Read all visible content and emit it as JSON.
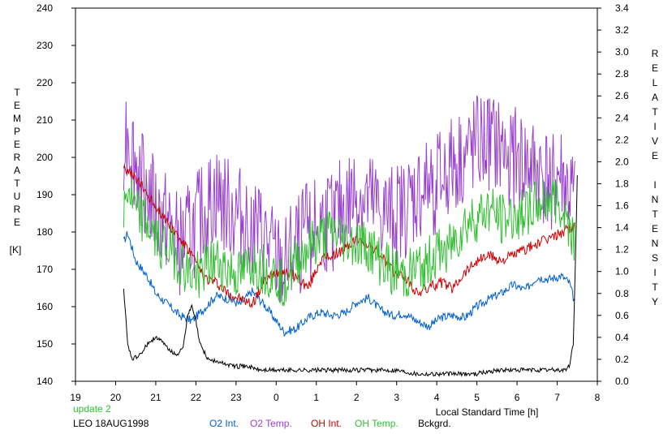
{
  "chart_data": {
    "type": "line",
    "xlabel": "Local Standard Time [h]",
    "ylabel_left": "TEMPERATURE",
    "ylabel_left_unit": "[K]",
    "ylabel_right": "RELATIVE INTENSITY",
    "station": "LEO 18AUG1998",
    "update_label": "update 2",
    "x_ticks": [
      "19",
      "20",
      "21",
      "22",
      "23",
      "0",
      "1",
      "2",
      "3",
      "4",
      "5",
      "6",
      "7",
      "8"
    ],
    "xlim": [
      19,
      32
    ],
    "ylim_left": [
      140,
      240
    ],
    "y_ticks_left": [
      140,
      150,
      160,
      170,
      180,
      190,
      200,
      210,
      220,
      230,
      240
    ],
    "ylim_right": [
      0.0,
      3.4
    ],
    "y_ticks_right": [
      "0.0",
      "0.2",
      "0.4",
      "0.6",
      "0.8",
      "1.0",
      "1.2",
      "1.4",
      "1.6",
      "1.8",
      "2.0",
      "2.2",
      "2.4",
      "2.6",
      "2.8",
      "3.0",
      "3.2",
      "3.4"
    ],
    "grid": false,
    "legend_placement": "bottom",
    "series": [
      {
        "name": "O2 Int.",
        "axis": "right",
        "color": "#0060d0",
        "x": [
          20.2,
          20.3,
          20.5,
          20.8,
          21.0,
          21.3,
          21.6,
          21.9,
          22.2,
          22.5,
          22.8,
          23.1,
          23.4,
          23.7,
          24.0,
          24.2,
          24.5,
          24.8,
          25.1,
          25.4,
          25.7,
          26.0,
          26.3,
          26.6,
          26.9,
          27.2,
          27.5,
          27.8,
          28.1,
          28.4,
          28.7,
          29.0,
          29.3,
          29.6,
          29.9,
          30.2,
          30.5,
          30.8,
          31.1,
          31.3,
          31.45
        ],
        "y": [
          1.27,
          1.35,
          1.1,
          0.95,
          0.8,
          0.7,
          0.6,
          0.55,
          0.66,
          0.78,
          0.75,
          0.7,
          0.82,
          0.7,
          0.55,
          0.45,
          0.48,
          0.58,
          0.63,
          0.6,
          0.62,
          0.72,
          0.76,
          0.65,
          0.6,
          0.62,
          0.55,
          0.5,
          0.58,
          0.6,
          0.58,
          0.68,
          0.75,
          0.8,
          0.88,
          0.83,
          0.95,
          0.93,
          0.96,
          0.9,
          0.7
        ]
      },
      {
        "name": "O2 Temp.",
        "axis": "left",
        "color": "#9a40d0",
        "x": [
          20.2,
          20.3,
          20.5,
          20.8,
          21.0,
          21.3,
          21.6,
          21.9,
          22.2,
          22.5,
          22.8,
          23.1,
          23.4,
          23.7,
          24.0,
          24.2,
          24.5,
          24.8,
          25.1,
          25.4,
          25.7,
          26.0,
          26.3,
          26.6,
          26.9,
          27.2,
          27.5,
          27.8,
          28.1,
          28.4,
          28.7,
          29.0,
          29.3,
          29.6,
          29.9,
          30.2,
          30.5,
          30.8,
          31.1,
          31.3,
          31.45
        ],
        "y": [
          205,
          208,
          198,
          192,
          185,
          182,
          176,
          180,
          185,
          190,
          186,
          184,
          182,
          178,
          172,
          170,
          176,
          180,
          182,
          183,
          187,
          190,
          188,
          185,
          184,
          186,
          190,
          192,
          194,
          198,
          200,
          203,
          204,
          202,
          200,
          198,
          196,
          194,
          195,
          190,
          188
        ]
      },
      {
        "name": "OH Int.",
        "axis": "right",
        "color": "#d00000",
        "x": [
          20.2,
          20.3,
          20.5,
          20.8,
          21.0,
          21.3,
          21.6,
          21.9,
          22.2,
          22.5,
          22.8,
          23.1,
          23.4,
          23.7,
          24.0,
          24.2,
          24.5,
          24.8,
          25.1,
          25.4,
          25.7,
          26.0,
          26.3,
          26.6,
          26.9,
          27.2,
          27.5,
          27.8,
          28.1,
          28.4,
          28.7,
          29.0,
          29.3,
          29.6,
          29.9,
          30.2,
          30.5,
          30.8,
          31.1,
          31.3,
          31.45
        ],
        "y": [
          1.98,
          1.9,
          1.85,
          1.7,
          1.6,
          1.45,
          1.3,
          1.15,
          0.95,
          0.9,
          0.8,
          0.75,
          0.7,
          0.9,
          1.0,
          1.0,
          0.95,
          0.85,
          1.1,
          1.15,
          1.2,
          1.3,
          1.25,
          1.15,
          1.0,
          0.95,
          0.8,
          0.85,
          0.9,
          0.85,
          1.0,
          1.1,
          1.15,
          1.1,
          1.15,
          1.2,
          1.25,
          1.3,
          1.35,
          1.4,
          1.4
        ]
      },
      {
        "name": "OH Temp.",
        "axis": "left",
        "color": "#30c030",
        "x": [
          20.2,
          20.3,
          20.5,
          20.8,
          21.0,
          21.3,
          21.6,
          21.9,
          22.2,
          22.5,
          22.8,
          23.1,
          23.4,
          23.7,
          24.0,
          24.2,
          24.5,
          24.8,
          25.1,
          25.4,
          25.7,
          26.0,
          26.3,
          26.6,
          26.9,
          27.2,
          27.5,
          27.8,
          28.1,
          28.4,
          28.7,
          29.0,
          29.3,
          29.6,
          29.9,
          30.2,
          30.5,
          30.8,
          31.1,
          31.3,
          31.45
        ],
        "y": [
          185,
          192,
          185,
          182,
          178,
          176,
          172,
          168,
          170,
          172,
          170,
          168,
          172,
          170,
          168,
          167,
          172,
          176,
          178,
          180,
          178,
          177,
          176,
          172,
          170,
          168,
          170,
          172,
          175,
          177,
          182,
          184,
          186,
          183,
          184,
          186,
          187,
          189,
          188,
          182,
          178
        ]
      },
      {
        "name": "Bckgrd.",
        "axis": "left",
        "color": "#000000",
        "x": [
          20.2,
          20.3,
          20.4,
          20.6,
          20.8,
          21.0,
          21.2,
          21.4,
          21.5,
          21.6,
          21.7,
          21.8,
          21.9,
          22.0,
          22.1,
          22.3,
          22.6,
          23.0,
          23.3,
          23.6,
          24.0,
          24.5,
          25.0,
          25.5,
          26.0,
          26.5,
          27.0,
          27.5,
          28.0,
          28.5,
          29.0,
          29.5,
          30.0,
          30.5,
          31.0,
          31.2,
          31.3,
          31.4,
          31.45,
          31.5
        ],
        "y": [
          165,
          150,
          146,
          147,
          150,
          152,
          150,
          148,
          147,
          148,
          150,
          158,
          160,
          156,
          150,
          146,
          145,
          144,
          144,
          143,
          143,
          143,
          143,
          143,
          143,
          143,
          143,
          142,
          142,
          142,
          142,
          143,
          143,
          143,
          143,
          143,
          144,
          150,
          170,
          195
        ]
      }
    ]
  }
}
